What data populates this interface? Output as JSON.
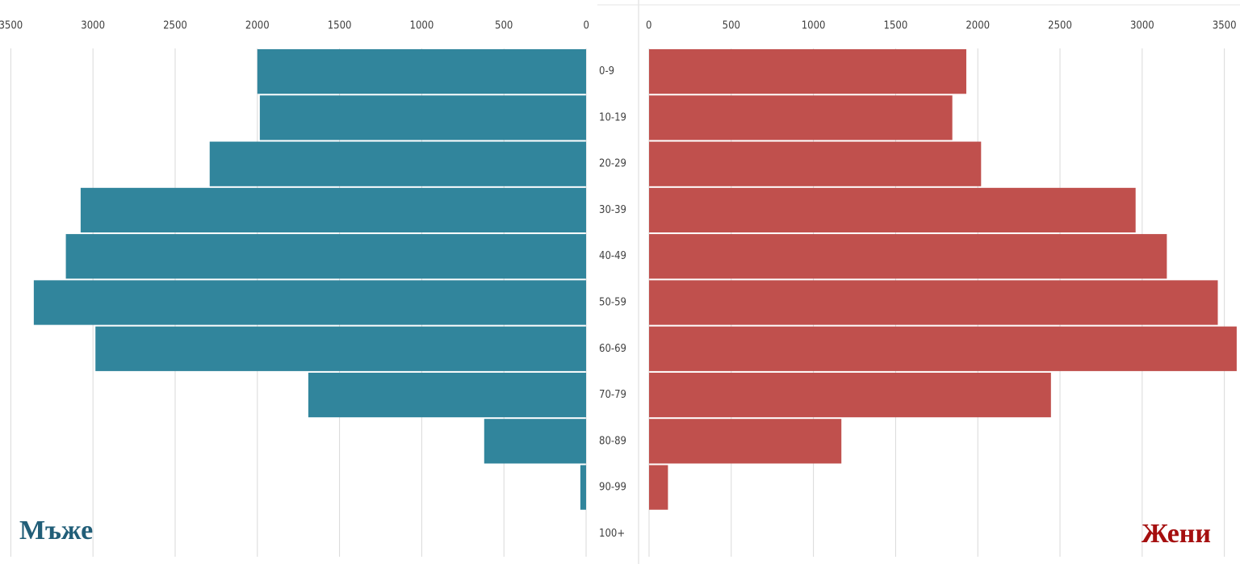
{
  "chart_data": {
    "type": "pyramid",
    "categories": [
      "0-9",
      "10-19",
      "20-29",
      "30-39",
      "40-49",
      "50-59",
      "60-69",
      "70-79",
      "80-89",
      "90-99",
      "100+"
    ],
    "series": [
      {
        "name": "Мъже",
        "color": "#31859c",
        "values": [
          2000,
          1985,
          2290,
          3075,
          3165,
          3360,
          2985,
          1690,
          620,
          35,
          0
        ]
      },
      {
        "name": "Жени",
        "color": "#c0504d",
        "values": [
          1930,
          1845,
          2020,
          2960,
          3150,
          3460,
          3575,
          2445,
          1170,
          115,
          0
        ]
      }
    ],
    "xlim": [
      0,
      3600
    ],
    "xticks": [
      0,
      500,
      1000,
      1500,
      2000,
      2500,
      3000,
      3500
    ],
    "grid": true
  }
}
